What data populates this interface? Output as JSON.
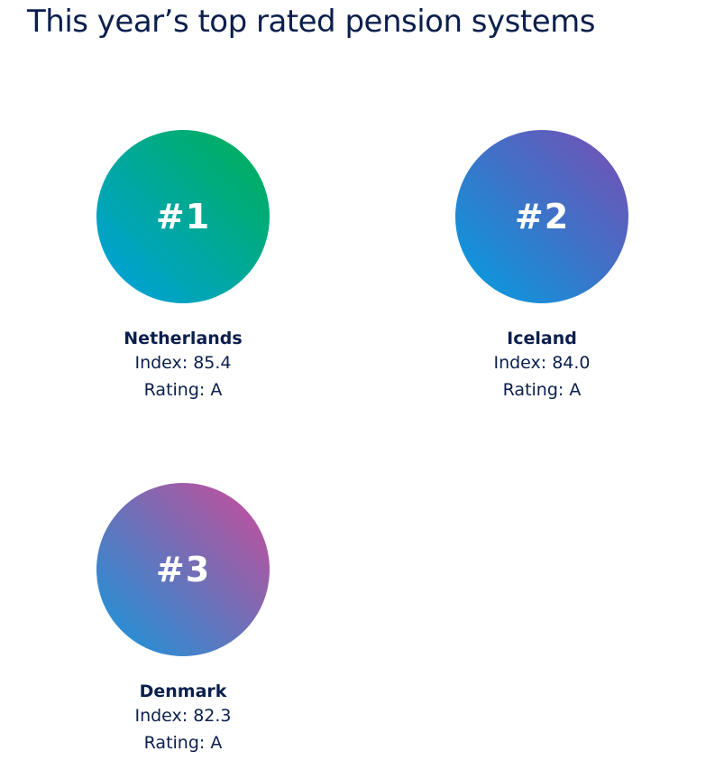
{
  "page": {
    "title": "This year’s top rated pension systems"
  },
  "rankings": [
    {
      "rank": "#1",
      "country": "Netherlands",
      "index": "Index: 85.4",
      "rating": "Rating: A"
    },
    {
      "rank": "#2",
      "country": "Iceland",
      "index": "Index: 84.0",
      "rating": "Rating: A"
    },
    {
      "rank": "#3",
      "country": "Denmark",
      "index": "Index: 82.3",
      "rating": "Rating: A"
    }
  ],
  "colors": {
    "text": "#0b1f4d",
    "badge_1": [
      "#00a0e3",
      "#00a89a",
      "#00b04f"
    ],
    "badge_2": [
      "#00a0e3",
      "#3c74c8",
      "#7b4cb4"
    ],
    "badge_3": [
      "#1298de",
      "#6e70b8",
      "#cf4a98"
    ]
  }
}
